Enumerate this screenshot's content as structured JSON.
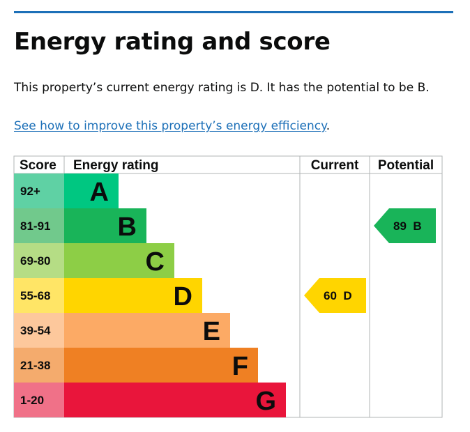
{
  "heading": "Energy rating and score",
  "summary": "This property’s current energy rating is D. It has the potential to be B.",
  "improve_link": {
    "text": "See how to improve this property’s energy efficiency",
    "suffix": "."
  },
  "chart_data": {
    "type": "table",
    "columns": [
      "Score",
      "Energy rating",
      "Current",
      "Potential"
    ],
    "bands": [
      {
        "score": "92+",
        "rating": "A",
        "color": "#00c781",
        "score_bg": "#5fd1a4"
      },
      {
        "score": "81-91",
        "rating": "B",
        "color": "#19b459",
        "score_bg": "#71c98c"
      },
      {
        "score": "69-80",
        "rating": "C",
        "color": "#8dce46",
        "score_bg": "#b5dd85"
      },
      {
        "score": "55-68",
        "rating": "D",
        "color": "#ffd500",
        "score_bg": "#ffe566"
      },
      {
        "score": "39-54",
        "rating": "E",
        "color": "#fcaa65",
        "score_bg": "#fdc89c"
      },
      {
        "score": "21-38",
        "rating": "F",
        "color": "#ef8023",
        "score_bg": "#f4ab6d"
      },
      {
        "score": "1-20",
        "rating": "G",
        "color": "#e9153b",
        "score_bg": "#f07188"
      }
    ],
    "current": {
      "score": 60,
      "rating": "D",
      "color": "#ffd500",
      "label": "60  D"
    },
    "potential": {
      "score": 89,
      "rating": "B",
      "color": "#19b459",
      "label": "89  B"
    }
  }
}
